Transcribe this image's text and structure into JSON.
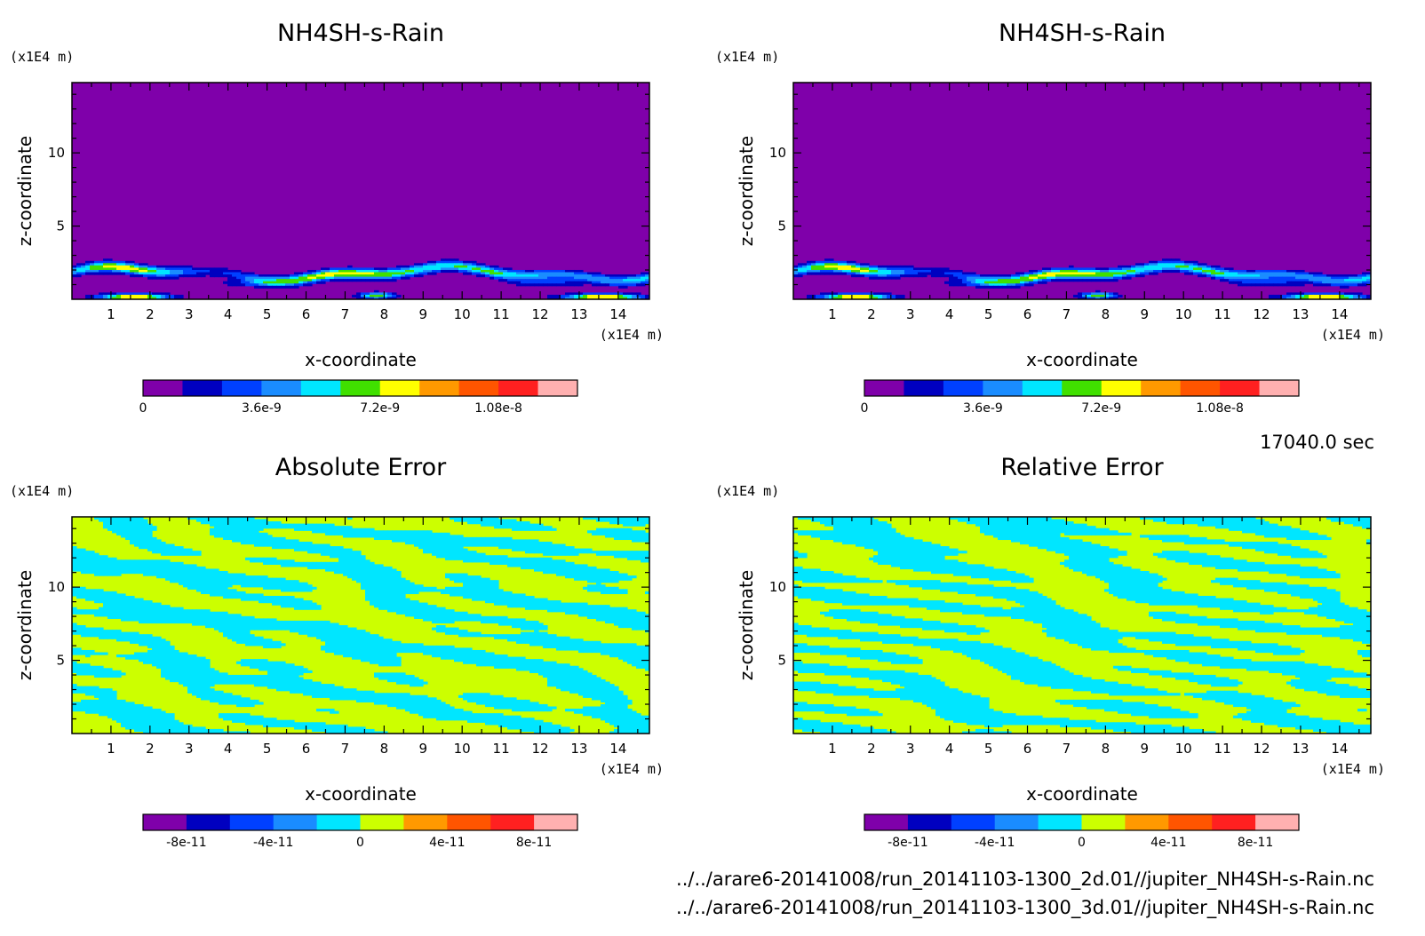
{
  "colors": {
    "purple": "#7f00aa",
    "navy": "#0000c0",
    "blue": "#0040ff",
    "skyblue": "#1a8cff",
    "cyan": "#00e6ff",
    "green": "#40e000",
    "lime": "#ccff00",
    "yellow": "#ffff00",
    "orange": "#ff9900",
    "redorange": "#ff5500",
    "red": "#ff2020",
    "pink": "#ffb0b0"
  },
  "chart_data": [
    {
      "type": "heatmap",
      "title": "NH4SH-s-Rain",
      "xlabel": "x-coordinate",
      "ylabel": "z-coordinate",
      "x_unit": "(x1E4 m)",
      "y_unit": "(x1E4 m)",
      "xlim": [
        0,
        14.8
      ],
      "ylim": [
        0,
        14.8
      ],
      "xticks": [
        "1",
        "2",
        "3",
        "4",
        "5",
        "6",
        "7",
        "8",
        "9",
        "10",
        "11",
        "12",
        "13",
        "14"
      ],
      "yticks": [
        "5",
        "10"
      ],
      "field": "rain",
      "colorbar": {
        "colors": [
          "purple",
          "navy",
          "blue",
          "skyblue",
          "cyan",
          "green",
          "yellow",
          "orange",
          "redorange",
          "red",
          "pink"
        ],
        "tick_labels": [
          "0",
          "3.6e-9",
          "7.2e-9",
          "1.08e-8"
        ],
        "tick_values": [
          0,
          3.6e-09,
          7.2e-09,
          1.08e-08
        ],
        "range": [
          0,
          1.32e-08
        ]
      }
    },
    {
      "type": "heatmap",
      "title": "NH4SH-s-Rain",
      "xlabel": "x-coordinate",
      "ylabel": "z-coordinate",
      "x_unit": "(x1E4 m)",
      "y_unit": "(x1E4 m)",
      "xlim": [
        0,
        14.8
      ],
      "ylim": [
        0,
        14.8
      ],
      "xticks": [
        "1",
        "2",
        "3",
        "4",
        "5",
        "6",
        "7",
        "8",
        "9",
        "10",
        "11",
        "12",
        "13",
        "14"
      ],
      "yticks": [
        "5",
        "10"
      ],
      "field": "rain",
      "colorbar": {
        "colors": [
          "purple",
          "navy",
          "blue",
          "skyblue",
          "cyan",
          "green",
          "yellow",
          "orange",
          "redorange",
          "red",
          "pink"
        ],
        "tick_labels": [
          "0",
          "3.6e-9",
          "7.2e-9",
          "1.08e-8"
        ],
        "tick_values": [
          0,
          3.6e-09,
          7.2e-09,
          1.08e-08
        ],
        "range": [
          0,
          1.32e-08
        ]
      }
    },
    {
      "type": "heatmap",
      "title": "Absolute Error",
      "xlabel": "x-coordinate",
      "ylabel": "z-coordinate",
      "x_unit": "(x1E4 m)",
      "y_unit": "(x1E4 m)",
      "xlim": [
        0,
        14.8
      ],
      "ylim": [
        0,
        14.8
      ],
      "xticks": [
        "1",
        "2",
        "3",
        "4",
        "5",
        "6",
        "7",
        "8",
        "9",
        "10",
        "11",
        "12",
        "13",
        "14"
      ],
      "yticks": [
        "5",
        "10"
      ],
      "field": "noise",
      "seed": 11,
      "colorbar": {
        "colors": [
          "purple",
          "navy",
          "blue",
          "skyblue",
          "cyan",
          "lime",
          "orange",
          "redorange",
          "red",
          "pink"
        ],
        "tick_labels": [
          "-8e-11",
          "-4e-11",
          "0",
          "4e-11",
          "8e-11"
        ],
        "tick_values": [
          -8e-11,
          -4e-11,
          0,
          4e-11,
          8e-11
        ],
        "range": [
          -1e-10,
          1e-10
        ]
      }
    },
    {
      "type": "heatmap",
      "title": "Relative Error",
      "xlabel": "x-coordinate",
      "ylabel": "z-coordinate",
      "x_unit": "(x1E4 m)",
      "y_unit": "(x1E4 m)",
      "xlim": [
        0,
        14.8
      ],
      "ylim": [
        0,
        14.8
      ],
      "xticks": [
        "1",
        "2",
        "3",
        "4",
        "5",
        "6",
        "7",
        "8",
        "9",
        "10",
        "11",
        "12",
        "13",
        "14"
      ],
      "yticks": [
        "5",
        "10"
      ],
      "field": "noise",
      "seed": 29,
      "colorbar": {
        "colors": [
          "purple",
          "navy",
          "blue",
          "skyblue",
          "cyan",
          "lime",
          "orange",
          "redorange",
          "red",
          "pink"
        ],
        "tick_labels": [
          "-8e-11",
          "-4e-11",
          "0",
          "4e-11",
          "8e-11"
        ],
        "tick_values": [
          -8e-11,
          -4e-11,
          0,
          4e-11,
          8e-11
        ],
        "range": [
          -1e-10,
          1e-10
        ]
      }
    }
  ],
  "timestamp": "17040.0 sec",
  "footer": {
    "line1": "../../arare6-20141008/run_20141103-1300_2d.01//jupiter_NH4SH-s-Rain.nc",
    "line2": "../../arare6-20141008/run_20141103-1300_3d.01//jupiter_NH4SH-s-Rain.nc"
  }
}
